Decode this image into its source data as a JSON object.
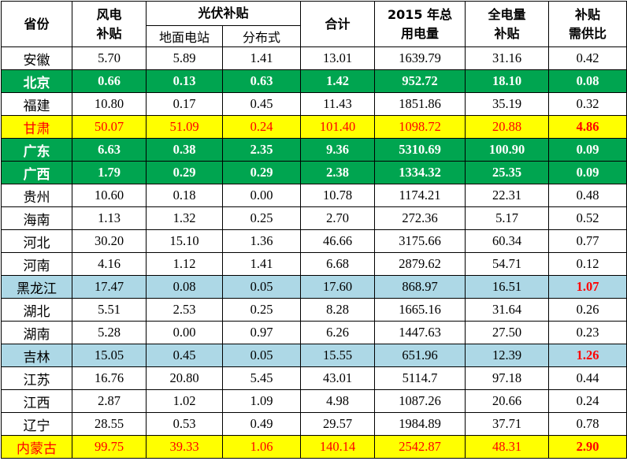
{
  "headers": {
    "province": "省份",
    "wind": [
      "风电",
      "补贴"
    ],
    "pv_group": "光伏补贴",
    "pv_ground": "地面电站",
    "pv_distributed": "分布式",
    "total": "合计",
    "consumption": [
      "2015 年总",
      "用电量"
    ],
    "full_subsidy": [
      "全电量",
      "补贴"
    ],
    "ratio": [
      "补贴",
      "需供比"
    ]
  },
  "highlight_colors": {
    "green_row": "#00a550",
    "yellow_row": "#ffff00",
    "blue_row": "#add8e6",
    "red_text": "#ff0000"
  },
  "rows": [
    {
      "province": "安徽",
      "wind": "5.70",
      "pv_ground": "5.89",
      "pv_distributed": "1.41",
      "total": "13.01",
      "consumption": "1639.79",
      "full_subsidy": "31.16",
      "ratio": "0.42",
      "style": "",
      "ratio_red": false
    },
    {
      "province": "北京",
      "wind": "0.66",
      "pv_ground": "0.13",
      "pv_distributed": "0.63",
      "total": "1.42",
      "consumption": "952.72",
      "full_subsidy": "18.10",
      "ratio": "0.08",
      "style": "green",
      "ratio_red": false
    },
    {
      "province": "福建",
      "wind": "10.80",
      "pv_ground": "0.17",
      "pv_distributed": "0.45",
      "total": "11.43",
      "consumption": "1851.86",
      "full_subsidy": "35.19",
      "ratio": "0.32",
      "style": "",
      "ratio_red": false
    },
    {
      "province": "甘肃",
      "wind": "50.07",
      "pv_ground": "51.09",
      "pv_distributed": "0.24",
      "total": "101.40",
      "consumption": "1098.72",
      "full_subsidy": "20.88",
      "ratio": "4.86",
      "style": "yellow",
      "ratio_red": true
    },
    {
      "province": "广东",
      "wind": "6.63",
      "pv_ground": "0.38",
      "pv_distributed": "2.35",
      "total": "9.36",
      "consumption": "5310.69",
      "full_subsidy": "100.90",
      "ratio": "0.09",
      "style": "green",
      "ratio_red": false
    },
    {
      "province": "广西",
      "wind": "1.79",
      "pv_ground": "0.29",
      "pv_distributed": "0.29",
      "total": "2.38",
      "consumption": "1334.32",
      "full_subsidy": "25.35",
      "ratio": "0.09",
      "style": "green",
      "ratio_red": false
    },
    {
      "province": "贵州",
      "wind": "10.60",
      "pv_ground": "0.18",
      "pv_distributed": "0.00",
      "total": "10.78",
      "consumption": "1174.21",
      "full_subsidy": "22.31",
      "ratio": "0.48",
      "style": "",
      "ratio_red": false
    },
    {
      "province": "海南",
      "wind": "1.13",
      "pv_ground": "1.32",
      "pv_distributed": "0.25",
      "total": "2.70",
      "consumption": "272.36",
      "full_subsidy": "5.17",
      "ratio": "0.52",
      "style": "",
      "ratio_red": false
    },
    {
      "province": "河北",
      "wind": "30.20",
      "pv_ground": "15.10",
      "pv_distributed": "1.36",
      "total": "46.66",
      "consumption": "3175.66",
      "full_subsidy": "60.34",
      "ratio": "0.77",
      "style": "",
      "ratio_red": false
    },
    {
      "province": "河南",
      "wind": "4.16",
      "pv_ground": "1.12",
      "pv_distributed": "1.41",
      "total": "6.68",
      "consumption": "2879.62",
      "full_subsidy": "54.71",
      "ratio": "0.12",
      "style": "",
      "ratio_red": false
    },
    {
      "province": "黑龙江",
      "wind": "17.47",
      "pv_ground": "0.08",
      "pv_distributed": "0.05",
      "total": "17.60",
      "consumption": "868.97",
      "full_subsidy": "16.51",
      "ratio": "1.07",
      "style": "blue",
      "ratio_red": true
    },
    {
      "province": "湖北",
      "wind": "5.51",
      "pv_ground": "2.53",
      "pv_distributed": "0.25",
      "total": "8.28",
      "consumption": "1665.16",
      "full_subsidy": "31.64",
      "ratio": "0.26",
      "style": "",
      "ratio_red": false
    },
    {
      "province": "湖南",
      "wind": "5.28",
      "pv_ground": "0.00",
      "pv_distributed": "0.97",
      "total": "6.26",
      "consumption": "1447.63",
      "full_subsidy": "27.50",
      "ratio": "0.23",
      "style": "",
      "ratio_red": false
    },
    {
      "province": "吉林",
      "wind": "15.05",
      "pv_ground": "0.45",
      "pv_distributed": "0.05",
      "total": "15.55",
      "consumption": "651.96",
      "full_subsidy": "12.39",
      "ratio": "1.26",
      "style": "blue",
      "ratio_red": true
    },
    {
      "province": "江苏",
      "wind": "16.76",
      "pv_ground": "20.80",
      "pv_distributed": "5.45",
      "total": "43.01",
      "consumption": "5114.7",
      "full_subsidy": "97.18",
      "ratio": "0.44",
      "style": "",
      "ratio_red": false
    },
    {
      "province": "江西",
      "wind": "2.87",
      "pv_ground": "1.02",
      "pv_distributed": "1.09",
      "total": "4.98",
      "consumption": "1087.26",
      "full_subsidy": "20.66",
      "ratio": "0.24",
      "style": "",
      "ratio_red": false
    },
    {
      "province": "辽宁",
      "wind": "28.55",
      "pv_ground": "0.53",
      "pv_distributed": "0.49",
      "total": "29.57",
      "consumption": "1984.89",
      "full_subsidy": "37.71",
      "ratio": "0.78",
      "style": "",
      "ratio_red": false
    },
    {
      "province": "内蒙古",
      "wind": "99.75",
      "pv_ground": "39.33",
      "pv_distributed": "1.06",
      "total": "140.14",
      "consumption": "2542.87",
      "full_subsidy": "48.31",
      "ratio": "2.90",
      "style": "yellow",
      "ratio_red": true
    }
  ]
}
